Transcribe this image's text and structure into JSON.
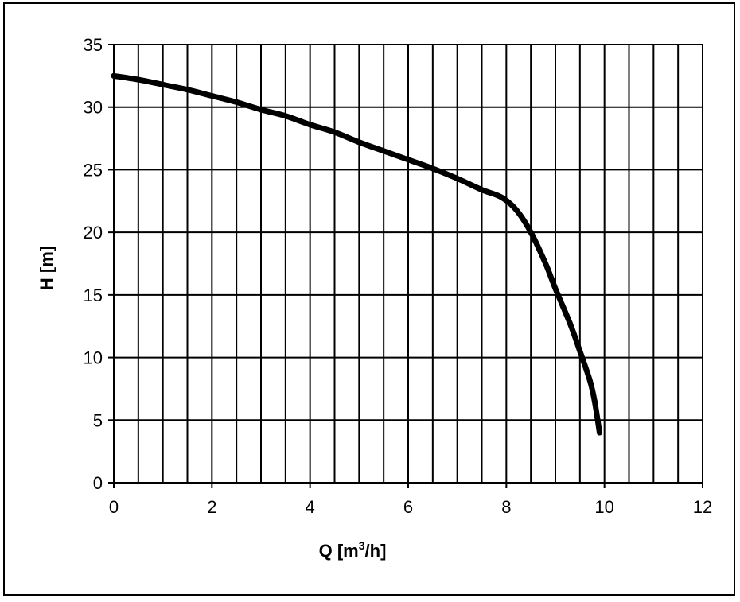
{
  "chart_data": {
    "type": "line",
    "title": "",
    "xlabel": "Q [m³/h]",
    "xlabel_main": "Q [m",
    "xlabel_sup": "3",
    "xlabel_end": "/h]",
    "ylabel": "H [m]",
    "xlim": [
      0,
      12
    ],
    "ylim": [
      0,
      35
    ],
    "x_ticks": [
      0,
      2,
      4,
      6,
      8,
      10,
      12
    ],
    "y_ticks": [
      0,
      5,
      10,
      15,
      20,
      25,
      30,
      35
    ],
    "x_grid_step": 0.5,
    "y_grid_step": 5,
    "grid": true,
    "legend": "none",
    "line_color": "#000000",
    "series": [
      {
        "x": [
          0,
          0.5,
          1,
          1.5,
          2,
          2.5,
          3,
          3.5,
          4,
          4.5,
          5,
          5.5,
          6,
          6.5,
          7,
          7.5,
          7.9,
          8.2,
          8.5,
          8.8,
          9,
          9.3,
          9.5,
          9.7,
          9.8,
          9.9
        ],
        "y": [
          32.5,
          32.2,
          31.8,
          31.4,
          30.9,
          30.4,
          29.8,
          29.3,
          28.6,
          28.0,
          27.2,
          26.5,
          25.8,
          25.1,
          24.3,
          23.4,
          22.8,
          21.8,
          20.0,
          17.5,
          15.5,
          12.7,
          10.5,
          8.2,
          6.5,
          4.0
        ]
      }
    ]
  }
}
